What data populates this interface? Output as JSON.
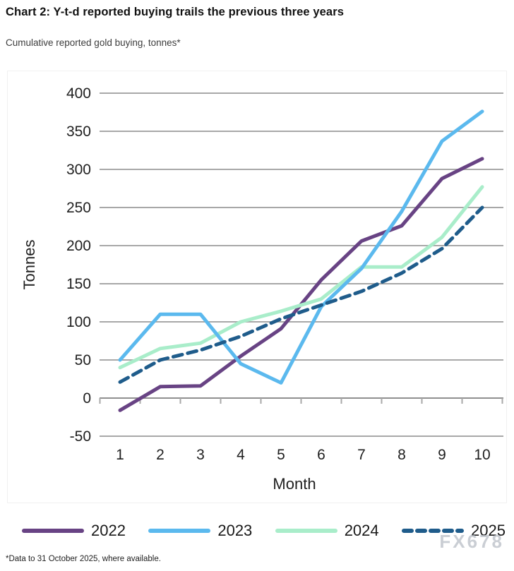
{
  "page": {
    "title": "Chart 2: Y-t-d reported buying trails the previous three years",
    "subtitle": "Cumulative reported gold buying, tonnes*",
    "footnote": "*Data to 31 October 2025, where available.",
    "watermark": "FX678"
  },
  "colors": {
    "gridline": "#a8a8a8",
    "zero_axis": "#8f8f8f",
    "tick_label": "#1f1f1f",
    "axis_title": "#1f1f1f"
  },
  "chart_data": {
    "type": "line",
    "title": "Cumulative reported gold buying, tonnes*",
    "x": [
      1,
      2,
      3,
      4,
      5,
      6,
      7,
      8,
      9,
      10
    ],
    "xlabel": "Month",
    "ylabel": "Tonnes",
    "ylim": [
      -50,
      400
    ],
    "ytick_step": 50,
    "grid": true,
    "legend_position": "bottom",
    "series": [
      {
        "name": "2022",
        "color": "#684384",
        "style": "solid",
        "values": [
          -16,
          15,
          16,
          55,
          91,
          155,
          206,
          226,
          288,
          314
        ]
      },
      {
        "name": "2023",
        "color": "#5bb9ee",
        "style": "solid",
        "values": [
          50,
          110,
          110,
          45,
          20,
          120,
          170,
          245,
          337,
          376
        ]
      },
      {
        "name": "2024",
        "color": "#a9edca",
        "style": "solid",
        "values": [
          40,
          65,
          72,
          100,
          114,
          130,
          172,
          172,
          211,
          277
        ]
      },
      {
        "name": "2025",
        "color": "#1f5c8b",
        "style": "dashed",
        "values": [
          21,
          50,
          63,
          81,
          104,
          122,
          140,
          164,
          196,
          250
        ]
      }
    ]
  }
}
